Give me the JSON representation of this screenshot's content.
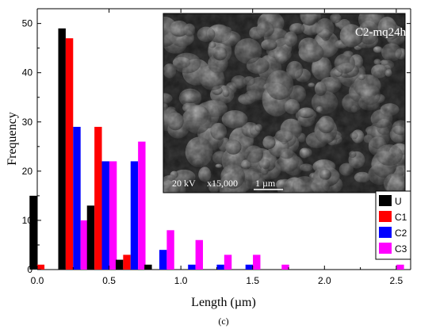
{
  "chart_data": {
    "type": "bar",
    "xlabel": "Length (µm)",
    "ylabel": "Frequency",
    "xlim": [
      0,
      2.6
    ],
    "ylim": [
      0,
      53
    ],
    "x_ticks": [
      "0.0",
      "0.5",
      "1.0",
      "1.5",
      "2.0",
      "2.5"
    ],
    "y_ticks": [
      "0",
      "10",
      "20",
      "30",
      "40",
      "50"
    ],
    "bin_centers": [
      0.05,
      0.25,
      0.45,
      0.65,
      0.85,
      1.05,
      1.25,
      1.45,
      1.65,
      1.85,
      2.05,
      2.25,
      2.45
    ],
    "series": [
      {
        "name": "U",
        "color": "#000000",
        "values": [
          15,
          49,
          13,
          2,
          1,
          0,
          0,
          0,
          0,
          0,
          0,
          0,
          0
        ]
      },
      {
        "name": "C1",
        "color": "#ff0000",
        "values": [
          1,
          47,
          29,
          3,
          0,
          0,
          0,
          0,
          0,
          0,
          0,
          0,
          0
        ]
      },
      {
        "name": "C2",
        "color": "#0000ff",
        "values": [
          0,
          29,
          22,
          22,
          4,
          1,
          1,
          1,
          0,
          0,
          0,
          0,
          0
        ]
      },
      {
        "name": "C3",
        "color": "#ff00ff",
        "values": [
          0,
          10,
          22,
          26,
          8,
          6,
          3,
          3,
          1,
          0,
          0,
          0,
          1
        ]
      }
    ],
    "legend_position": "bottom-right",
    "grid": false
  },
  "inset": {
    "title": "C2-mq24h",
    "voltage": "20 kV",
    "magnification": "x15,000",
    "scale_bar": "1 µm"
  },
  "caption": "(c)"
}
